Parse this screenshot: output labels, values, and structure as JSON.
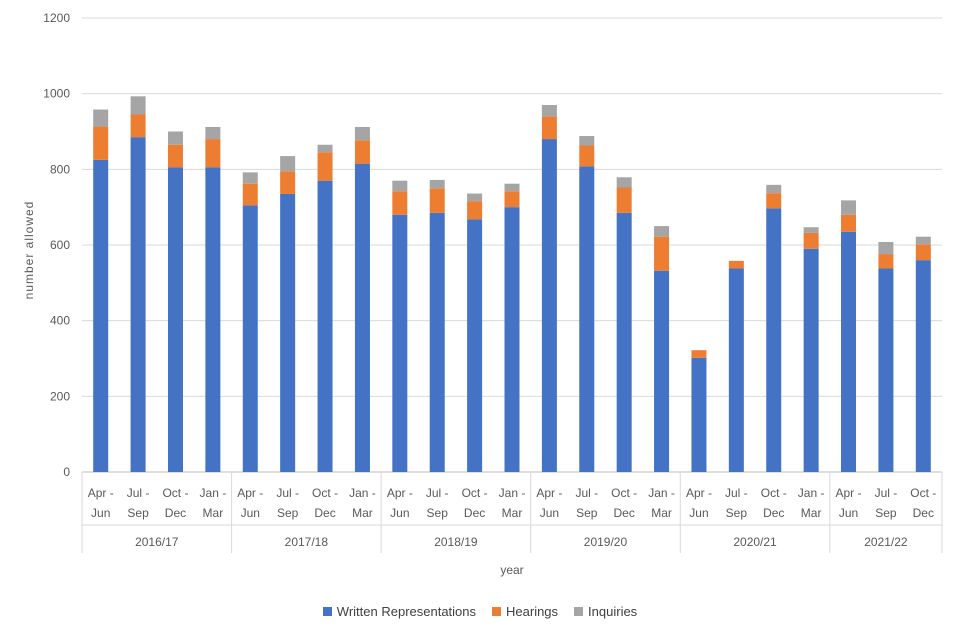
{
  "chart_data": {
    "type": "bar",
    "stacked": true,
    "title": "",
    "xlabel": "year",
    "ylabel": "number allowed",
    "ylim": [
      0,
      1200
    ],
    "yticks": [
      0,
      200,
      400,
      600,
      800,
      1000,
      1200
    ],
    "grid": true,
    "legend_position": "bottom",
    "groups": [
      {
        "label": "2016/17",
        "count": 4
      },
      {
        "label": "2017/18",
        "count": 4
      },
      {
        "label": "2018/19",
        "count": 4
      },
      {
        "label": "2019/20",
        "count": 4
      },
      {
        "label": "2020/21",
        "count": 4
      },
      {
        "label": "2021/22",
        "count": 3
      }
    ],
    "categories": [
      [
        "Apr -",
        "Jun"
      ],
      [
        "Jul -",
        "Sep"
      ],
      [
        "Oct -",
        "Dec"
      ],
      [
        "Jan -",
        "Mar"
      ],
      [
        "Apr -",
        "Jun"
      ],
      [
        "Jul -",
        "Sep"
      ],
      [
        "Oct -",
        "Dec"
      ],
      [
        "Jan -",
        "Mar"
      ],
      [
        "Apr -",
        "Jun"
      ],
      [
        "Jul -",
        "Sep"
      ],
      [
        "Oct -",
        "Dec"
      ],
      [
        "Jan -",
        "Mar"
      ],
      [
        "Apr -",
        "Jun"
      ],
      [
        "Jul -",
        "Sep"
      ],
      [
        "Oct -",
        "Dec"
      ],
      [
        "Jan -",
        "Mar"
      ],
      [
        "Apr -",
        "Jun"
      ],
      [
        "Jul -",
        "Sep"
      ],
      [
        "Oct -",
        "Dec"
      ],
      [
        "Jan -",
        "Mar"
      ],
      [
        "Apr -",
        "Jun"
      ],
      [
        "Jul -",
        "Sep"
      ],
      [
        "Oct -",
        "Dec"
      ]
    ],
    "series": [
      {
        "name": "Written Representations",
        "color": "#4472C4",
        "values": [
          825,
          885,
          805,
          805,
          705,
          735,
          770,
          815,
          680,
          685,
          668,
          700,
          880,
          808,
          685,
          532,
          302,
          538,
          697,
          590,
          635,
          538,
          560
        ]
      },
      {
        "name": "Hearings",
        "color": "#ED7D31",
        "values": [
          88,
          60,
          60,
          75,
          57,
          60,
          75,
          62,
          62,
          65,
          48,
          42,
          60,
          55,
          67,
          90,
          20,
          20,
          40,
          42,
          45,
          38,
          42
        ]
      },
      {
        "name": "Inquiries",
        "color": "#A5A5A5",
        "values": [
          45,
          48,
          35,
          32,
          30,
          40,
          20,
          35,
          28,
          22,
          20,
          20,
          30,
          25,
          27,
          28,
          0,
          0,
          22,
          15,
          38,
          32,
          20
        ]
      }
    ]
  }
}
